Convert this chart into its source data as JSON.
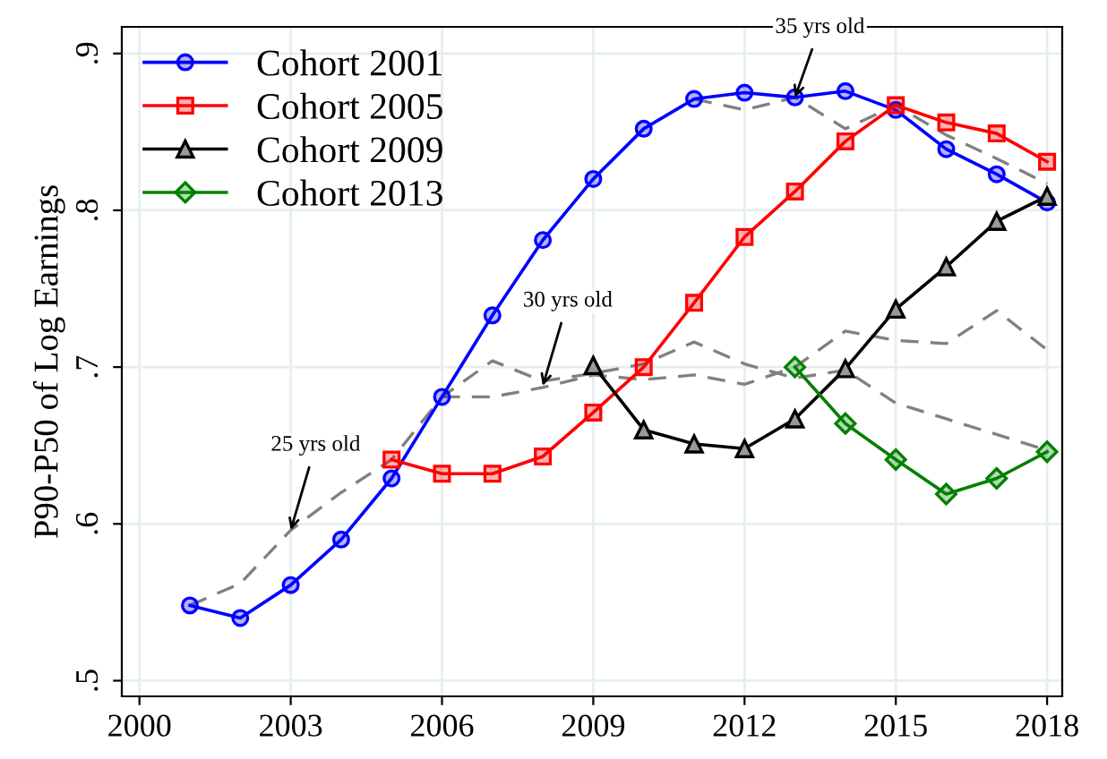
{
  "chart_data": {
    "type": "line",
    "ylabel": "P90-P50 of Log Earnings",
    "xlim": [
      1999.65,
      2018.3
    ],
    "ylim": [
      0.49,
      0.917
    ],
    "xticks": [
      2000,
      2003,
      2006,
      2009,
      2012,
      2015,
      2018
    ],
    "yticks": [
      {
        "value": 0.5,
        "label": ".5"
      },
      {
        "value": 0.6,
        "label": ".6"
      },
      {
        "value": 0.7,
        "label": ".7"
      },
      {
        "value": 0.8,
        "label": ".8"
      },
      {
        "value": 0.9,
        "label": ".9"
      }
    ],
    "grid": true,
    "legend": "top left",
    "series": [
      {
        "name": "Cohort 2001",
        "color": "#0000ff",
        "marker": "circle",
        "line_style": "solid",
        "x": [
          2001,
          2002,
          2003,
          2004,
          2005,
          2006,
          2007,
          2008,
          2009,
          2010,
          2011,
          2012,
          2013,
          2014,
          2015,
          2016,
          2017,
          2018
        ],
        "values": [
          0.548,
          0.54,
          0.561,
          0.59,
          0.629,
          0.681,
          0.733,
          0.781,
          0.82,
          0.852,
          0.871,
          0.875,
          0.872,
          0.876,
          0.864,
          0.839,
          0.823,
          0.805
        ]
      },
      {
        "name": "Cohort 2005",
        "color": "#ff0000",
        "marker": "square",
        "line_style": "solid",
        "x": [
          2005,
          2006,
          2007,
          2008,
          2009,
          2010,
          2011,
          2012,
          2013,
          2014,
          2015,
          2016,
          2017,
          2018
        ],
        "values": [
          0.641,
          0.632,
          0.632,
          0.643,
          0.671,
          0.7,
          0.741,
          0.783,
          0.812,
          0.844,
          0.867,
          0.856,
          0.849,
          0.831
        ]
      },
      {
        "name": "Cohort 2009",
        "color": "#000000",
        "marker": "triangle",
        "line_style": "solid",
        "x": [
          2009,
          2010,
          2011,
          2012,
          2013,
          2014,
          2015,
          2016,
          2017,
          2018
        ],
        "values": [
          0.701,
          0.66,
          0.651,
          0.648,
          0.667,
          0.699,
          0.737,
          0.764,
          0.793,
          0.809
        ]
      },
      {
        "name": "Cohort 2013",
        "color": "#008000",
        "marker": "diamond",
        "line_style": "solid",
        "x": [
          2013,
          2014,
          2015,
          2016,
          2017,
          2018
        ],
        "values": [
          0.7,
          0.664,
          0.641,
          0.619,
          0.629,
          0.646
        ]
      },
      {
        "color": "#808080",
        "marker": "none",
        "line_style": "dashed",
        "x": [
          2001,
          2002,
          2003,
          2004,
          2005,
          2006,
          2007,
          2008,
          2009,
          2010,
          2011,
          2012,
          2013,
          2014,
          2015,
          2016,
          2017,
          2018
        ],
        "values": [
          0.548,
          0.562,
          0.596,
          0.62,
          0.641,
          0.681,
          0.704,
          0.691,
          0.696,
          0.702,
          0.716,
          0.702,
          0.693,
          0.698,
          0.677,
          0.667,
          0.657,
          0.647
        ]
      },
      {
        "color": "#808080",
        "marker": "none",
        "line_style": "dashed",
        "x": [
          2006,
          2007,
          2008,
          2009,
          2010,
          2011,
          2012,
          2013,
          2014,
          2015,
          2016,
          2017,
          2018
        ],
        "values": [
          0.681,
          0.681,
          0.687,
          0.695,
          0.692,
          0.695,
          0.689,
          0.7,
          0.723,
          0.717,
          0.715,
          0.736,
          0.711
        ]
      },
      {
        "color": "#808080",
        "marker": "none",
        "line_style": "dashed",
        "x": [
          2011,
          2012,
          2013,
          2014,
          2015,
          2016,
          2017,
          2018
        ],
        "values": [
          0.871,
          0.864,
          0.872,
          0.852,
          0.867,
          0.848,
          0.833,
          0.817
        ]
      }
    ],
    "annotations": [
      {
        "text": "25 yrs old",
        "x": 2003,
        "y": 0.596
      },
      {
        "text": "30 yrs old",
        "x": 2008,
        "y": 0.688
      },
      {
        "text": "35 yrs old",
        "x": 2013,
        "y": 0.872
      }
    ]
  }
}
